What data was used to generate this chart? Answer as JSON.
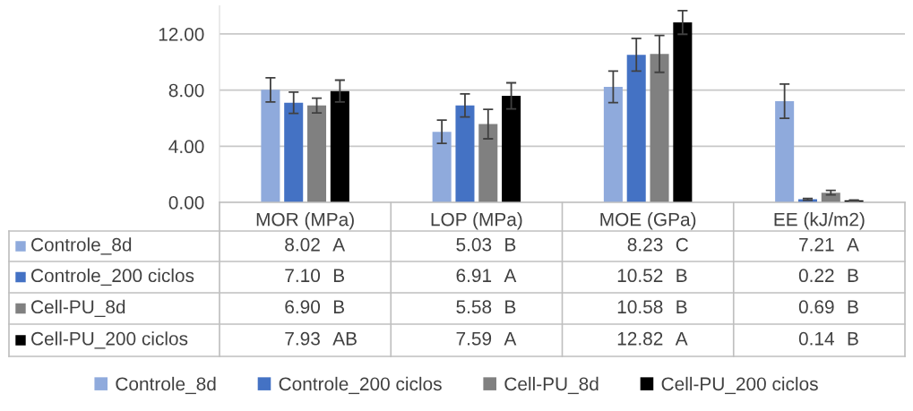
{
  "chart_data": {
    "type": "bar",
    "categories": [
      "MOR (MPa)",
      "LOP (MPa)",
      "MOE (GPa)",
      "EE (kJ/m2)"
    ],
    "series": [
      {
        "name": "Controle_8d",
        "color": "#8faadc",
        "values": [
          8.02,
          5.03,
          8.23,
          7.21
        ],
        "errors": [
          0.86,
          0.83,
          1.12,
          1.22
        ],
        "value_labels": [
          "8.02",
          "5.03",
          "8.23",
          "7.21"
        ]
      },
      {
        "name": "Controle_200 ciclos",
        "color": "#4472c4",
        "values": [
          7.1,
          6.91,
          10.52,
          0.22
        ],
        "errors": [
          0.76,
          0.82,
          1.16,
          0.06
        ],
        "value_labels": [
          "7.10",
          "6.91",
          "10.52",
          "0.22"
        ]
      },
      {
        "name": "Cell-PU_8d",
        "color": "#808080",
        "values": [
          6.9,
          5.58,
          10.58,
          0.69
        ],
        "errors": [
          0.53,
          1.05,
          1.31,
          0.16
        ],
        "value_labels": [
          "6.90",
          "5.58",
          "10.58",
          "0.69"
        ]
      },
      {
        "name": "Cell-PU_200 ciclos",
        "color": "#000000",
        "values": [
          7.93,
          7.59,
          12.82,
          0.14
        ],
        "errors": [
          0.78,
          0.93,
          0.84,
          0.02
        ],
        "value_labels": [
          "7.93",
          "7.59",
          "12.82",
          "0.14"
        ]
      }
    ],
    "annotations": [
      "A",
      "B",
      "C",
      "A",
      "B",
      "A",
      "B",
      "B",
      "B",
      "B",
      "B",
      "B",
      "AB",
      "A",
      "A",
      "B"
    ],
    "ylim": [
      0,
      14
    ],
    "yticks": [
      {
        "value": 0,
        "label": "0.00"
      },
      {
        "value": 4,
        "label": "4.00"
      },
      {
        "value": 8,
        "label": "8.00"
      },
      {
        "value": 12,
        "label": "12.00"
      }
    ],
    "grid": "y",
    "legend": "bottom"
  }
}
